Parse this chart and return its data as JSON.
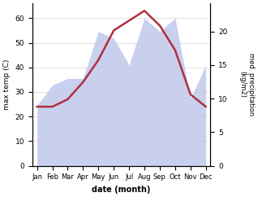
{
  "months": [
    "Jan",
    "Feb",
    "Mar",
    "Apr",
    "May",
    "Jun",
    "Jul",
    "Aug",
    "Sep",
    "Oct",
    "Nov",
    "Dec"
  ],
  "temp": [
    24,
    24,
    27,
    34,
    43,
    55,
    59,
    63,
    57,
    47,
    29,
    24
  ],
  "precip": [
    9,
    12,
    13,
    13,
    20,
    19,
    15,
    22,
    20,
    22,
    10,
    15
  ],
  "temp_color": "#b03040",
  "precip_fill_color": "#c8d0ee",
  "temp_ylim": [
    0,
    66
  ],
  "precip_ylim": [
    0,
    24.2
  ],
  "temp_yticks": [
    0,
    10,
    20,
    30,
    40,
    50,
    60
  ],
  "precip_yticks": [
    0,
    5,
    10,
    15,
    20
  ],
  "xlabel": "date (month)",
  "ylabel_left": "max temp (C)",
  "ylabel_right": "med. precipitation\n(kg/m2)",
  "bg_color": "#ffffff",
  "figsize": [
    3.18,
    2.42
  ],
  "dpi": 100
}
